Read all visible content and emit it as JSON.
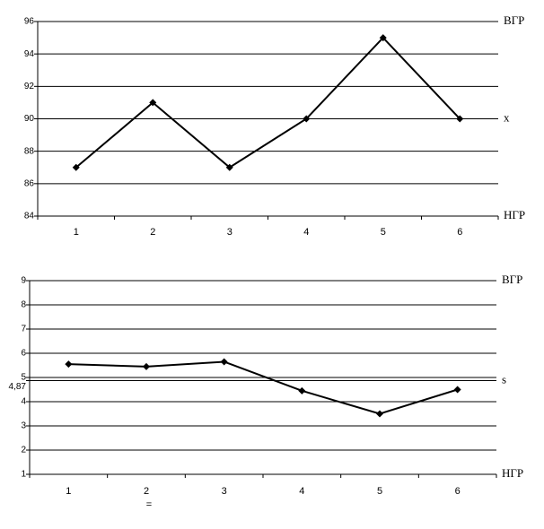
{
  "chart_data": [
    {
      "type": "line",
      "categories": [
        "1",
        "2",
        "3",
        "4",
        "5",
        "6"
      ],
      "values": [
        87,
        91,
        87,
        90,
        95,
        90
      ],
      "color": "#000000",
      "ylim": [
        84,
        96
      ],
      "yticks": [
        84,
        86,
        88,
        90,
        92,
        94,
        96
      ],
      "grid": true,
      "right_labels": [
        {
          "text": "ВГР",
          "value": 96
        },
        {
          "text": "x",
          "value": 90
        },
        {
          "text": "НГР",
          "value": 84
        }
      ]
    },
    {
      "type": "line",
      "categories": [
        "1",
        "2",
        "3",
        "4",
        "5",
        "6"
      ],
      "values": [
        5.55,
        5.45,
        5.65,
        4.45,
        3.5,
        4.5
      ],
      "color": "#000000",
      "ylim": [
        1,
        9
      ],
      "yticks": [
        1,
        2,
        3,
        4,
        {
          "value": 4.87,
          "label": "4,87"
        },
        5,
        6,
        7,
        8,
        9
      ],
      "grid": true,
      "right_labels": [
        {
          "text": "ВГР",
          "value": 9
        },
        {
          "text": "s",
          "value": 4.87
        },
        {
          "text": "НГР",
          "value": 1
        }
      ]
    }
  ],
  "footnote": "="
}
